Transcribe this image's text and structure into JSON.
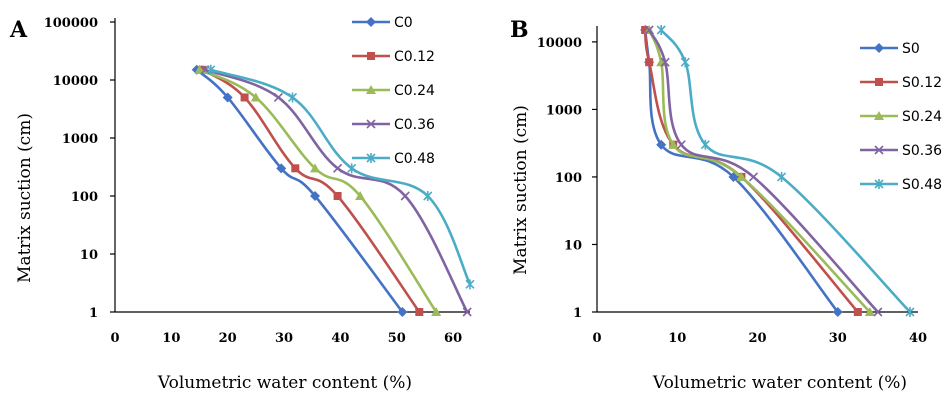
{
  "chart_data": [
    {
      "panel": "A",
      "type": "line",
      "title": "",
      "xlabel": "Volumetric water content (%)",
      "ylabel": "Matrix suction (cm)",
      "xlim": [
        0,
        63
      ],
      "ylim": [
        1,
        100000
      ],
      "yscale": "log",
      "x_ticks": [
        "0",
        "10",
        "20",
        "30",
        "40",
        "50",
        "60"
      ],
      "y_ticks": [
        "1",
        "10",
        "100",
        "1000",
        "10000",
        "100000"
      ],
      "grid": false,
      "legend_position": "top-right",
      "series": [
        {
          "name": "C0",
          "color": "#4472C4",
          "marker": "diamond",
          "points": [
            [
              14.5,
              15000
            ],
            [
              20,
              5000
            ],
            [
              29.5,
              300
            ],
            [
              35.5,
              100
            ],
            [
              51,
              1
            ]
          ]
        },
        {
          "name": "C0.12",
          "color": "#C0504D",
          "marker": "square",
          "points": [
            [
              15.5,
              15000
            ],
            [
              23,
              5000
            ],
            [
              32,
              300
            ],
            [
              39.5,
              100
            ],
            [
              54,
              1
            ]
          ]
        },
        {
          "name": "C0.24",
          "color": "#9BBB59",
          "marker": "triangle",
          "points": [
            [
              15,
              15000
            ],
            [
              25,
              5000
            ],
            [
              35.5,
              300
            ],
            [
              43.5,
              100
            ],
            [
              57,
              1
            ]
          ]
        },
        {
          "name": "C0.36",
          "color": "#8064A2",
          "marker": "x",
          "points": [
            [
              16,
              15000
            ],
            [
              29,
              5000
            ],
            [
              39.5,
              300
            ],
            [
              51.5,
              100
            ],
            [
              62.5,
              1
            ]
          ]
        },
        {
          "name": "C0.48",
          "color": "#4BACC6",
          "marker": "star",
          "points": [
            [
              17,
              15000
            ],
            [
              31.5,
              5000
            ],
            [
              42,
              300
            ],
            [
              55.5,
              100
            ],
            [
              63,
              3
            ]
          ]
        }
      ]
    },
    {
      "panel": "B",
      "type": "line",
      "title": "",
      "xlabel": "Volumetric water content (%)",
      "ylabel": "Matrix suction (cm)",
      "xlim": [
        0,
        40
      ],
      "ylim": [
        1,
        15000
      ],
      "yscale": "log",
      "x_ticks": [
        "0",
        "10",
        "20",
        "30",
        "40"
      ],
      "y_ticks": [
        "1",
        "10",
        "100",
        "1000",
        "10000"
      ],
      "grid": false,
      "legend_position": "right",
      "series": [
        {
          "name": "S0",
          "color": "#4472C4",
          "marker": "diamond",
          "points": [
            [
              6,
              15000
            ],
            [
              6.5,
              5000
            ],
            [
              8,
              300
            ],
            [
              17,
              100
            ],
            [
              30,
              1
            ]
          ]
        },
        {
          "name": "S0.12",
          "color": "#C0504D",
          "marker": "square",
          "points": [
            [
              6,
              15000
            ],
            [
              6.5,
              5000
            ],
            [
              9.5,
              300
            ],
            [
              18,
              100
            ],
            [
              32.5,
              1
            ]
          ]
        },
        {
          "name": "S0.24",
          "color": "#9BBB59",
          "marker": "triangle",
          "points": [
            [
              6.5,
              15000
            ],
            [
              8,
              5000
            ],
            [
              9.5,
              300
            ],
            [
              18,
              100
            ],
            [
              34,
              1
            ]
          ]
        },
        {
          "name": "S0.36",
          "color": "#8064A2",
          "marker": "x",
          "points": [
            [
              6.5,
              15000
            ],
            [
              8.5,
              5000
            ],
            [
              10.5,
              300
            ],
            [
              19.5,
              100
            ],
            [
              35,
              1
            ]
          ]
        },
        {
          "name": "S0.48",
          "color": "#4BACC6",
          "marker": "star",
          "points": [
            [
              8,
              15000
            ],
            [
              11,
              5000
            ],
            [
              13.5,
              300
            ],
            [
              23,
              100
            ],
            [
              39,
              1
            ]
          ]
        }
      ]
    }
  ]
}
